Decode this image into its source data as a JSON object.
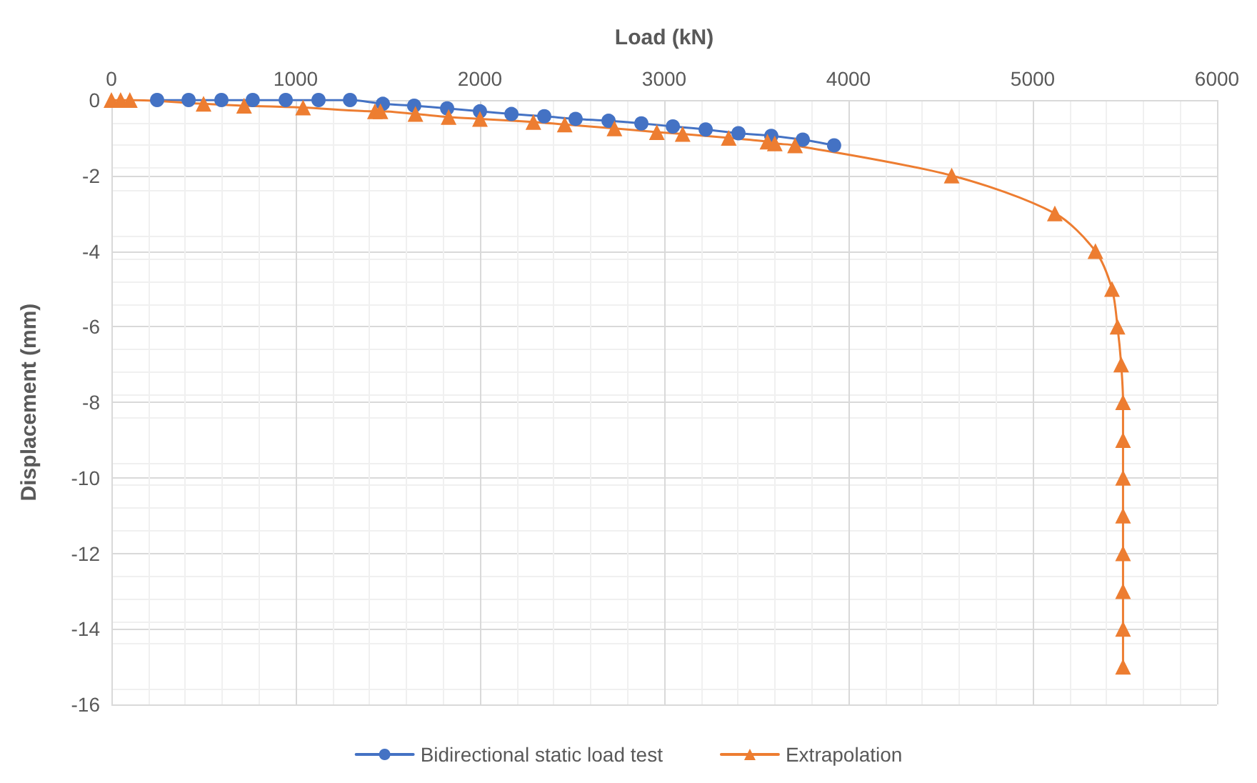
{
  "chart_data": {
    "type": "line",
    "xlabel": "Load (kN)",
    "ylabel": "Displacement (mm)",
    "xlim": [
      0,
      6000
    ],
    "xticks": [
      0,
      1000,
      2000,
      3000,
      4000,
      5000,
      6000
    ],
    "ylim": [
      -16,
      0
    ],
    "yticks": [
      -16,
      -14,
      -12,
      -10,
      -8,
      -6,
      -4,
      -2,
      0
    ],
    "grid": true,
    "legend": "bottom",
    "line_style": "solid",
    "series": [
      {
        "name": "Bidirectional static load test",
        "color": "#4472c4",
        "marker": "circle",
        "x": [
          248,
          419,
          597,
          767,
          946,
          1124,
          1295,
          1473,
          1643,
          1822,
          2000,
          2171,
          2349,
          2519,
          2698,
          2876,
          3047,
          3225,
          3403,
          3581,
          3752,
          3922
        ],
        "values": [
          0,
          0,
          0,
          0,
          0,
          0,
          0,
          -0.1,
          -0.15,
          -0.22,
          -0.3,
          -0.37,
          -0.43,
          -0.5,
          -0.55,
          -0.62,
          -0.7,
          -0.78,
          -0.88,
          -0.95,
          -1.05,
          -1.2
        ]
      },
      {
        "name": "Extrapolation",
        "color": "#ed7d31",
        "marker": "triangle",
        "x": [
          0,
          50,
          100,
          500,
          720,
          1040,
          1430,
          1460,
          1650,
          1830,
          2000,
          2290,
          2460,
          2730,
          2960,
          3100,
          3350,
          3560,
          3600,
          3710,
          4560,
          5120,
          5340,
          5430,
          5460,
          5480,
          5490,
          5490,
          5490,
          5490,
          5490,
          5490,
          5490,
          5490
        ],
        "values": [
          0,
          0,
          0,
          -0.1,
          -0.15,
          -0.2,
          -0.3,
          -0.3,
          -0.37,
          -0.45,
          -0.5,
          -0.58,
          -0.65,
          -0.75,
          -0.85,
          -0.9,
          -1,
          -1.1,
          -1.15,
          -1.2,
          -2,
          -3,
          -4,
          -5,
          -6,
          -7,
          -8,
          -9,
          -10,
          -11,
          -12,
          -13,
          -14,
          -15
        ]
      }
    ]
  }
}
